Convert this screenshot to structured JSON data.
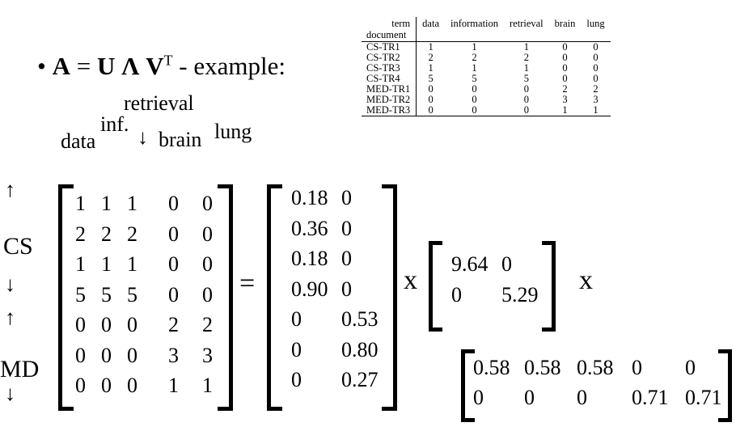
{
  "title": {
    "bullet": "•",
    "A": "A",
    "eq": " = ",
    "U": "U",
    "Lambda": "Λ",
    "V": "V",
    "sup": "T",
    "rest": " - example:"
  },
  "term_table": {
    "corner_top": "term",
    "corner_bottom": "document",
    "terms": [
      "data",
      "information",
      "retrieval",
      "brain",
      "lung"
    ],
    "rows": [
      {
        "doc": "CS-TR1",
        "values": [
          "1",
          "1",
          "1",
          "0",
          "0"
        ]
      },
      {
        "doc": "CS-TR2",
        "values": [
          "2",
          "2",
          "2",
          "0",
          "0"
        ]
      },
      {
        "doc": "CS-TR3",
        "values": [
          "1",
          "1",
          "1",
          "0",
          "0"
        ]
      },
      {
        "doc": "CS-TR4",
        "values": [
          "5",
          "5",
          "5",
          "0",
          "0"
        ]
      },
      {
        "doc": "MED-TR1",
        "values": [
          "0",
          "0",
          "0",
          "2",
          "2"
        ]
      },
      {
        "doc": "MED-TR2",
        "values": [
          "0",
          "0",
          "0",
          "3",
          "3"
        ]
      },
      {
        "doc": "MED-TR3",
        "values": [
          "0",
          "0",
          "0",
          "1",
          "1"
        ]
      }
    ]
  },
  "column_labels": {
    "data": "data",
    "inf": "inf.",
    "retrieval": "retrieval",
    "brain": "brain",
    "lung": "lung",
    "down_arrow": "↓"
  },
  "row_groups": {
    "cs": "CS",
    "md": "MD",
    "up_arrow": "↑",
    "down_arrow": "↓"
  },
  "matrix_A": [
    [
      "1",
      "1",
      "1",
      "0",
      "0"
    ],
    [
      "2",
      "2",
      "2",
      "0",
      "0"
    ],
    [
      "1",
      "1",
      "1",
      "0",
      "0"
    ],
    [
      "5",
      "5",
      "5",
      "0",
      "0"
    ],
    [
      "0",
      "0",
      "0",
      "2",
      "2"
    ],
    [
      "0",
      "0",
      "0",
      "3",
      "3"
    ],
    [
      "0",
      "0",
      "0",
      "1",
      "1"
    ]
  ],
  "equals": "=",
  "matrix_U": [
    [
      "0.18",
      "0"
    ],
    [
      "0.36",
      "0"
    ],
    [
      "0.18",
      "0"
    ],
    [
      "0.90",
      "0"
    ],
    [
      "0",
      "0.53"
    ],
    [
      "0",
      "0.80"
    ],
    [
      "0",
      "0.27"
    ]
  ],
  "times": "x",
  "matrix_Lambda": [
    [
      "9.64",
      "0"
    ],
    [
      "0",
      "5.29"
    ]
  ],
  "matrix_Vt": [
    [
      "0.58",
      "0.58",
      "0.58",
      "0",
      "0"
    ],
    [
      "0",
      "0",
      "0",
      "0.71",
      "0.71"
    ]
  ]
}
